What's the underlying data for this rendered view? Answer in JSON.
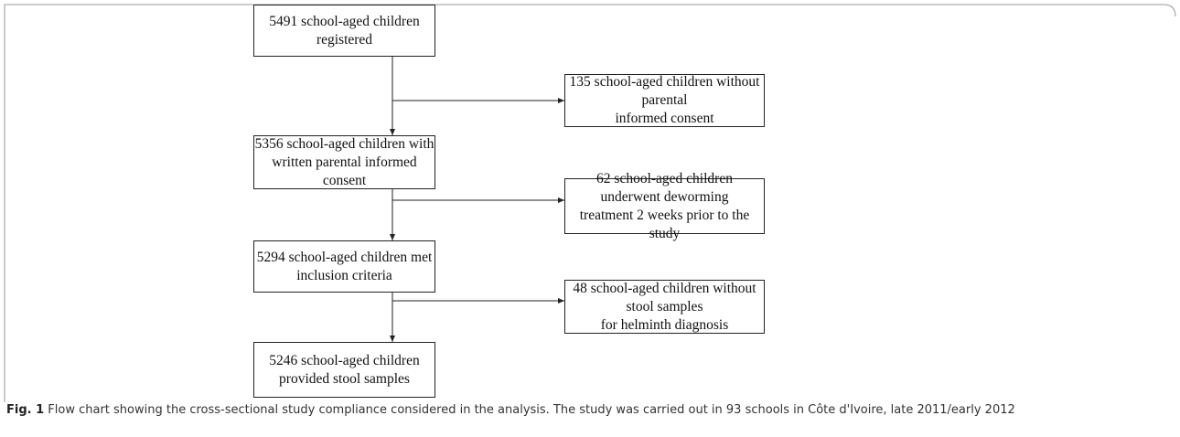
{
  "nodes": [
    {
      "lines": [
        "5491 school-aged children",
        "registered"
      ]
    },
    {
      "lines": [
        "135 school-aged children without parental",
        "informed consent"
      ]
    },
    {
      "lines": [
        "5356 school-aged children with",
        "written parental informed consent"
      ]
    },
    {
      "lines": [
        "62 school-aged children underwent deworming",
        "treatment 2 weeks prior to the study"
      ]
    },
    {
      "lines": [
        "5294 school-aged children met",
        "inclusion criteria"
      ]
    },
    {
      "lines": [
        "48 school-aged children without stool samples",
        "for helminth diagnosis"
      ]
    },
    {
      "lines": [
        "5246 school-aged children",
        "provided stool samples"
      ]
    }
  ],
  "caption": {
    "label": "Fig. 1",
    "text": "Flow chart showing the cross-sectional study compliance considered in the analysis. The study was carried out in 93 schools in Côte d'Ivoire, late 2011/early 2012"
  }
}
